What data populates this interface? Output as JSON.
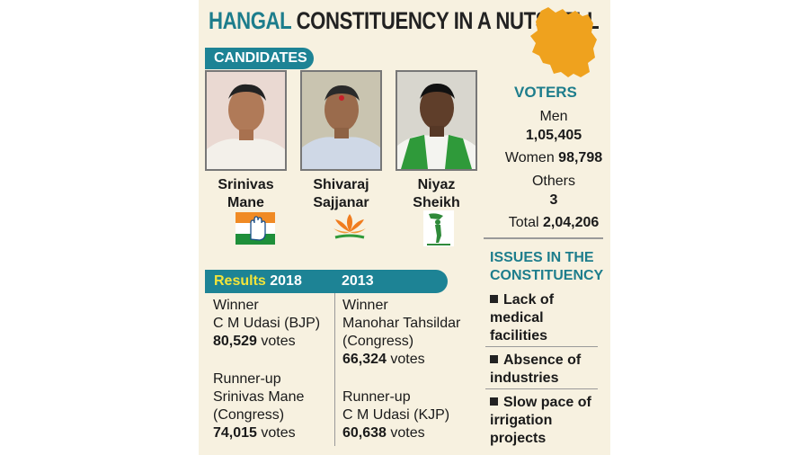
{
  "title": {
    "highlight": "HANGAL",
    "rest": "CONSTITUENCY IN A NUTSHELL"
  },
  "colors": {
    "accent": "#1d7d8c",
    "tag_bg": "#1d8395",
    "map": "#efa21e",
    "results_highlight": "#f2e43a"
  },
  "candidates_label": "CANDIDATES",
  "candidates": [
    {
      "first": "Srinivas",
      "last": "Mane",
      "party_symbol": "congress-hand-icon"
    },
    {
      "first": "Shivaraj",
      "last": "Sajjanar",
      "party_symbol": "bjp-lotus-icon"
    },
    {
      "first": "Niyaz",
      "last": "Sheikh",
      "party_symbol": "jds-farmer-icon"
    }
  ],
  "voters": {
    "heading": "VOTERS",
    "men_label": "Men",
    "men_value": "1,05,405",
    "women_label": "Women",
    "women_value": "98,798",
    "others_label": "Others",
    "others_value": "3",
    "total_label": "Total",
    "total_value": "2,04,206"
  },
  "issues": {
    "heading_1": "ISSUES IN THE",
    "heading_2": "CONSTITUENCY",
    "items": [
      {
        "line1": "Lack of",
        "line2": "medical",
        "line3": "facilities"
      },
      {
        "line1": "Absence of",
        "line2": "industries"
      },
      {
        "line1": "Slow pace of",
        "line2": "irrigation",
        "line3": "projects"
      }
    ]
  },
  "results": {
    "label": "Results",
    "year_a": "2018",
    "year_b": "2013",
    "y2018": {
      "winner_label": "Winner",
      "winner_name": "C M Udasi (BJP)",
      "winner_votes_num": "80,529",
      "votes_word": "votes",
      "runner_label": "Runner-up",
      "runner_name": "Srinivas Mane",
      "runner_party": "(Congress)",
      "runner_votes_num": "74,015"
    },
    "y2013": {
      "winner_label": "Winner",
      "winner_name": "Manohar Tahsildar",
      "winner_party": "(Congress)",
      "winner_votes_num": "66,324",
      "votes_word": "votes",
      "runner_label": "Runner-up",
      "runner_name": "C M Udasi (KJP)",
      "runner_votes_num": "60,638"
    }
  }
}
